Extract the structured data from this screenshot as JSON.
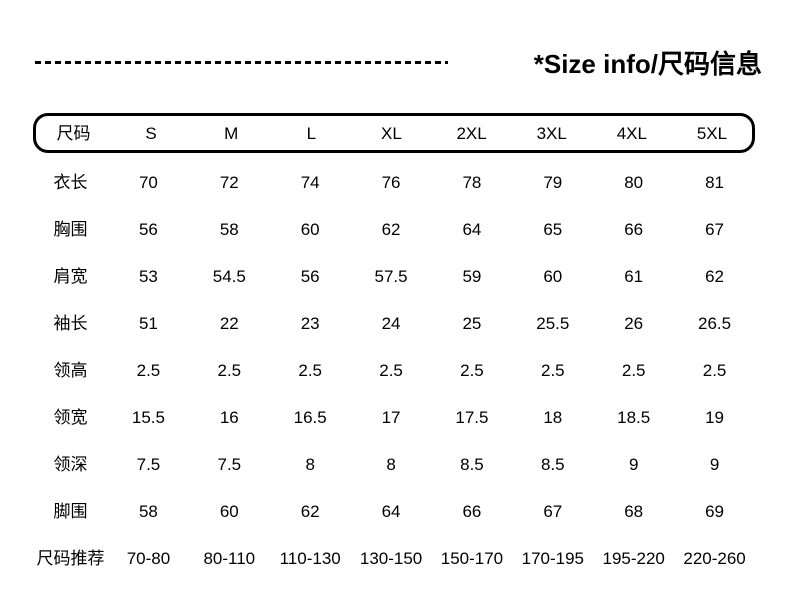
{
  "header": {
    "title": "*Size info/尺码信息"
  },
  "table": {
    "columns": [
      "尺码",
      "S",
      "M",
      "L",
      "XL",
      "2XL",
      "3XL",
      "4XL",
      "5XL"
    ],
    "rows": [
      {
        "label": "衣长",
        "values": [
          "70",
          "72",
          "74",
          "76",
          "78",
          "79",
          "80",
          "81"
        ]
      },
      {
        "label": "胸围",
        "values": [
          "56",
          "58",
          "60",
          "62",
          "64",
          "65",
          "66",
          "67"
        ]
      },
      {
        "label": "肩宽",
        "values": [
          "53",
          "54.5",
          "56",
          "57.5",
          "59",
          "60",
          "61",
          "62"
        ]
      },
      {
        "label": "袖长",
        "values": [
          "51",
          "22",
          "23",
          "24",
          "25",
          "25.5",
          "26",
          "26.5"
        ]
      },
      {
        "label": "领高",
        "values": [
          "2.5",
          "2.5",
          "2.5",
          "2.5",
          "2.5",
          "2.5",
          "2.5",
          "2.5"
        ]
      },
      {
        "label": "领宽",
        "values": [
          "15.5",
          "16",
          "16.5",
          "17",
          "17.5",
          "18",
          "18.5",
          "19"
        ]
      },
      {
        "label": "领深",
        "values": [
          "7.5",
          "7.5",
          "8",
          "8",
          "8.5",
          "8.5",
          "9",
          "9"
        ]
      },
      {
        "label": "脚围",
        "values": [
          "58",
          "60",
          "62",
          "64",
          "66",
          "67",
          "68",
          "69"
        ]
      },
      {
        "label": "尺码推荐",
        "values": [
          "70-80",
          "80-110",
          "110-130",
          "130-150",
          "150-170",
          "170-195",
          "195-220",
          "220-260"
        ]
      }
    ]
  },
  "colors": {
    "text": "#000000",
    "background": "#ffffff",
    "border": "#000000"
  }
}
